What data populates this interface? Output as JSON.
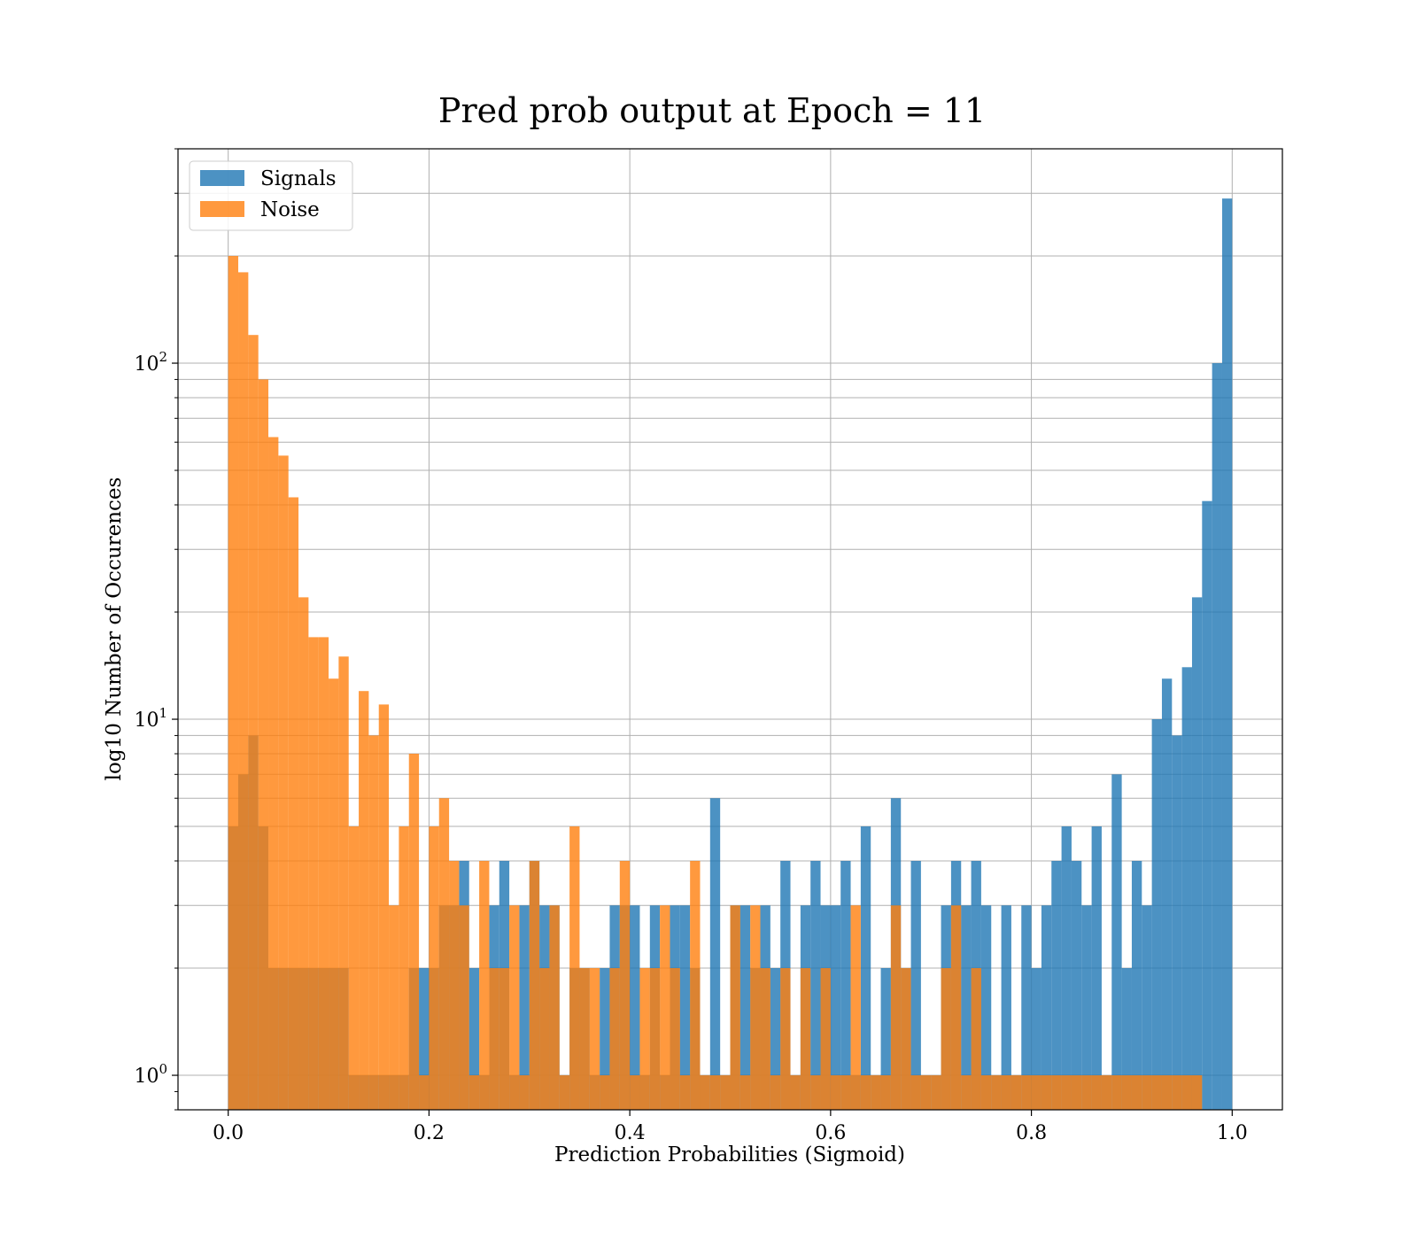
{
  "chart_data": {
    "type": "bar",
    "title": "Pred prob output at Epoch = 11",
    "xlabel": "Prediction Probabilities (Sigmoid)",
    "ylabel": "log10 Number of Occurences",
    "xlim": [
      -0.05,
      1.05
    ],
    "ylim": [
      0.8,
      400
    ],
    "yscale": "log",
    "grid": true,
    "legend_position": "upper-left",
    "xticks": [
      0.0,
      0.2,
      0.4,
      0.6,
      0.8,
      1.0
    ],
    "xtick_labels": [
      "0.0",
      "0.2",
      "0.4",
      "0.6",
      "0.8",
      "1.0"
    ],
    "yticks_major": [
      1,
      10,
      100
    ],
    "ytick_labels": [
      {
        "base": "10",
        "exp": "0"
      },
      {
        "base": "10",
        "exp": "1"
      },
      {
        "base": "10",
        "exp": "2"
      }
    ],
    "series": [
      {
        "name": "Signals",
        "color": "#1f77b4",
        "opacity": 0.8,
        "bin_width": 0.01,
        "bins": [
          [
            0.005,
            5
          ],
          [
            0.015,
            7
          ],
          [
            0.025,
            9
          ],
          [
            0.035,
            5
          ],
          [
            0.045,
            2
          ],
          [
            0.055,
            2
          ],
          [
            0.065,
            2
          ],
          [
            0.075,
            2
          ],
          [
            0.085,
            2
          ],
          [
            0.095,
            2
          ],
          [
            0.105,
            2
          ],
          [
            0.115,
            2
          ],
          [
            0.125,
            1
          ],
          [
            0.135,
            1
          ],
          [
            0.145,
            1
          ],
          [
            0.155,
            1
          ],
          [
            0.165,
            1
          ],
          [
            0.175,
            1
          ],
          [
            0.185,
            2
          ],
          [
            0.195,
            2
          ],
          [
            0.205,
            2
          ],
          [
            0.215,
            3
          ],
          [
            0.225,
            3
          ],
          [
            0.235,
            4
          ],
          [
            0.245,
            2
          ],
          [
            0.255,
            1
          ],
          [
            0.265,
            3
          ],
          [
            0.275,
            4
          ],
          [
            0.285,
            1
          ],
          [
            0.295,
            3
          ],
          [
            0.305,
            4
          ],
          [
            0.315,
            3
          ],
          [
            0.325,
            3
          ],
          [
            0.335,
            1
          ],
          [
            0.345,
            2
          ],
          [
            0.355,
            2
          ],
          [
            0.365,
            1
          ],
          [
            0.375,
            2
          ],
          [
            0.385,
            3
          ],
          [
            0.395,
            3
          ],
          [
            0.405,
            3
          ],
          [
            0.415,
            1
          ],
          [
            0.425,
            3
          ],
          [
            0.435,
            1
          ],
          [
            0.445,
            3
          ],
          [
            0.455,
            3
          ],
          [
            0.465,
            2
          ],
          [
            0.475,
            1
          ],
          [
            0.485,
            6
          ],
          [
            0.495,
            1
          ],
          [
            0.505,
            3
          ],
          [
            0.515,
            3
          ],
          [
            0.525,
            2
          ],
          [
            0.535,
            3
          ],
          [
            0.545,
            2
          ],
          [
            0.555,
            4
          ],
          [
            0.565,
            1
          ],
          [
            0.575,
            3
          ],
          [
            0.585,
            4
          ],
          [
            0.595,
            3
          ],
          [
            0.605,
            3
          ],
          [
            0.615,
            4
          ],
          [
            0.625,
            1
          ],
          [
            0.635,
            5
          ],
          [
            0.645,
            1
          ],
          [
            0.655,
            2
          ],
          [
            0.665,
            6
          ],
          [
            0.675,
            2
          ],
          [
            0.685,
            4
          ],
          [
            0.695,
            1
          ],
          [
            0.705,
            1
          ],
          [
            0.715,
            3
          ],
          [
            0.725,
            4
          ],
          [
            0.735,
            3
          ],
          [
            0.745,
            4
          ],
          [
            0.755,
            3
          ],
          [
            0.765,
            1
          ],
          [
            0.775,
            3
          ],
          [
            0.785,
            1
          ],
          [
            0.795,
            3
          ],
          [
            0.805,
            2
          ],
          [
            0.815,
            3
          ],
          [
            0.825,
            4
          ],
          [
            0.835,
            5
          ],
          [
            0.845,
            4
          ],
          [
            0.855,
            3
          ],
          [
            0.865,
            5
          ],
          [
            0.875,
            1
          ],
          [
            0.885,
            7
          ],
          [
            0.895,
            2
          ],
          [
            0.905,
            4
          ],
          [
            0.915,
            3
          ],
          [
            0.925,
            10
          ],
          [
            0.935,
            13
          ],
          [
            0.945,
            9
          ],
          [
            0.955,
            14
          ],
          [
            0.965,
            22
          ],
          [
            0.975,
            41
          ],
          [
            0.985,
            100
          ],
          [
            0.995,
            290
          ]
        ]
      },
      {
        "name": "Noise",
        "color": "#ff7f0e",
        "opacity": 0.8,
        "bin_width": 0.01,
        "bins": [
          [
            0.005,
            200
          ],
          [
            0.015,
            180
          ],
          [
            0.025,
            120
          ],
          [
            0.035,
            90
          ],
          [
            0.045,
            62
          ],
          [
            0.055,
            55
          ],
          [
            0.065,
            42
          ],
          [
            0.075,
            22
          ],
          [
            0.085,
            17
          ],
          [
            0.095,
            17
          ],
          [
            0.105,
            13
          ],
          [
            0.115,
            15
          ],
          [
            0.125,
            5
          ],
          [
            0.135,
            12
          ],
          [
            0.145,
            9
          ],
          [
            0.155,
            11
          ],
          [
            0.165,
            3
          ],
          [
            0.175,
            5
          ],
          [
            0.185,
            8
          ],
          [
            0.195,
            1
          ],
          [
            0.205,
            5
          ],
          [
            0.215,
            6
          ],
          [
            0.225,
            4
          ],
          [
            0.235,
            3
          ],
          [
            0.245,
            1
          ],
          [
            0.255,
            4
          ],
          [
            0.265,
            2
          ],
          [
            0.275,
            2
          ],
          [
            0.285,
            3
          ],
          [
            0.295,
            1
          ],
          [
            0.305,
            4
          ],
          [
            0.315,
            2
          ],
          [
            0.325,
            3
          ],
          [
            0.335,
            1
          ],
          [
            0.345,
            5
          ],
          [
            0.355,
            2
          ],
          [
            0.365,
            2
          ],
          [
            0.375,
            1
          ],
          [
            0.385,
            2
          ],
          [
            0.395,
            4
          ],
          [
            0.405,
            1
          ],
          [
            0.415,
            2
          ],
          [
            0.425,
            2
          ],
          [
            0.435,
            3
          ],
          [
            0.445,
            2
          ],
          [
            0.455,
            1
          ],
          [
            0.465,
            4
          ],
          [
            0.475,
            1
          ],
          [
            0.485,
            1
          ],
          [
            0.495,
            1
          ],
          [
            0.505,
            3
          ],
          [
            0.515,
            1
          ],
          [
            0.525,
            3
          ],
          [
            0.535,
            2
          ],
          [
            0.545,
            1
          ],
          [
            0.555,
            2
          ],
          [
            0.565,
            1
          ],
          [
            0.575,
            2
          ],
          [
            0.585,
            1
          ],
          [
            0.595,
            2
          ],
          [
            0.605,
            1
          ],
          [
            0.615,
            1
          ],
          [
            0.625,
            3
          ],
          [
            0.635,
            1
          ],
          [
            0.645,
            1
          ],
          [
            0.655,
            1
          ],
          [
            0.665,
            3
          ],
          [
            0.675,
            2
          ],
          [
            0.685,
            1
          ],
          [
            0.695,
            1
          ],
          [
            0.705,
            1
          ],
          [
            0.715,
            2
          ],
          [
            0.725,
            3
          ],
          [
            0.735,
            1
          ],
          [
            0.745,
            2
          ],
          [
            0.755,
            1
          ],
          [
            0.765,
            1
          ],
          [
            0.775,
            1
          ],
          [
            0.785,
            1
          ],
          [
            0.795,
            1
          ],
          [
            0.805,
            1
          ],
          [
            0.815,
            1
          ],
          [
            0.825,
            1
          ],
          [
            0.835,
            1
          ],
          [
            0.845,
            1
          ],
          [
            0.855,
            1
          ],
          [
            0.865,
            1
          ],
          [
            0.875,
            1
          ],
          [
            0.885,
            1
          ],
          [
            0.895,
            1
          ],
          [
            0.905,
            1
          ],
          [
            0.915,
            1
          ],
          [
            0.925,
            1
          ],
          [
            0.935,
            1
          ],
          [
            0.945,
            1
          ],
          [
            0.955,
            1
          ],
          [
            0.965,
            1
          ]
        ]
      }
    ]
  }
}
